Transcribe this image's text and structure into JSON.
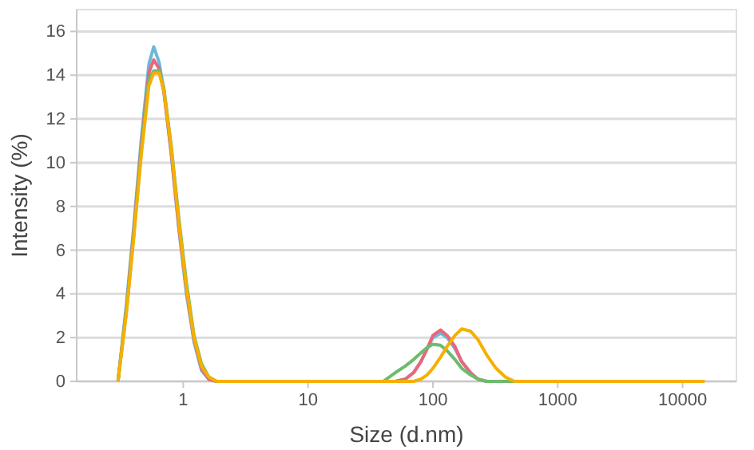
{
  "chart_data": {
    "type": "line",
    "xlabel": "Size (d.nm)",
    "ylabel": "Intensity (%)",
    "log": "x",
    "grid": "y",
    "marker": "none",
    "line_style": "solid",
    "xlim": [
      0.14,
      27000
    ],
    "xticks": [
      1,
      10,
      100,
      1000,
      10000
    ],
    "ylim": [
      0,
      17
    ],
    "yticks": [
      0,
      2,
      4,
      6,
      8,
      10,
      12,
      14,
      16
    ],
    "x": [
      0.3,
      0.35,
      0.4,
      0.46,
      0.53,
      0.58,
      0.64,
      0.7,
      0.8,
      0.92,
      1.06,
      1.22,
      1.4,
      1.6,
      1.85,
      2.1,
      40,
      50,
      60,
      70,
      80,
      90,
      100,
      115,
      130,
      150,
      170,
      200,
      230,
      270,
      320,
      380,
      450,
      15000
    ],
    "series": [
      {
        "color": "#6cb8d8",
        "values": [
          0,
          3.5,
          7,
          11,
          14.5,
          15.3,
          14.6,
          13.3,
          10.4,
          7,
          4,
          1.8,
          0.5,
          0.1,
          0,
          0,
          0,
          0,
          0.1,
          0.4,
          0.9,
          1.5,
          2,
          2.2,
          2,
          1.5,
          0.9,
          0.4,
          null,
          null,
          null,
          null,
          null,
          null
        ]
      },
      {
        "color": "#e8677c",
        "values": [
          0,
          3.3,
          6.8,
          10.7,
          14.1,
          14.7,
          14.3,
          13.2,
          10.5,
          7.1,
          4.2,
          1.9,
          0.6,
          0.1,
          0,
          0,
          0,
          0,
          0.1,
          0.4,
          0.9,
          1.5,
          2.1,
          2.35,
          2.1,
          1.6,
          0.9,
          0.4,
          0.1,
          0,
          null,
          null,
          null,
          null
        ]
      },
      {
        "color": "#6cbb6e",
        "values": [
          0,
          3.2,
          6.6,
          10.5,
          13.8,
          14.2,
          14.2,
          13.4,
          10.8,
          7.5,
          4.5,
          2.1,
          0.8,
          0.2,
          0,
          0,
          0,
          0.4,
          0.7,
          1,
          1.3,
          1.55,
          1.7,
          1.65,
          1.4,
          1,
          0.6,
          0.3,
          0.1,
          0,
          0,
          0,
          0,
          0
        ]
      },
      {
        "color": "#f5b000",
        "values": [
          0,
          3.1,
          6.5,
          10.3,
          13.5,
          14.1,
          14.1,
          13.3,
          10.7,
          7.3,
          4.3,
          2,
          0.7,
          0.2,
          0,
          0,
          0,
          0,
          0,
          0,
          0.1,
          0.3,
          0.6,
          1.1,
          1.6,
          2.1,
          2.4,
          2.3,
          1.9,
          1.2,
          0.6,
          0.2,
          0,
          0
        ]
      }
    ]
  }
}
